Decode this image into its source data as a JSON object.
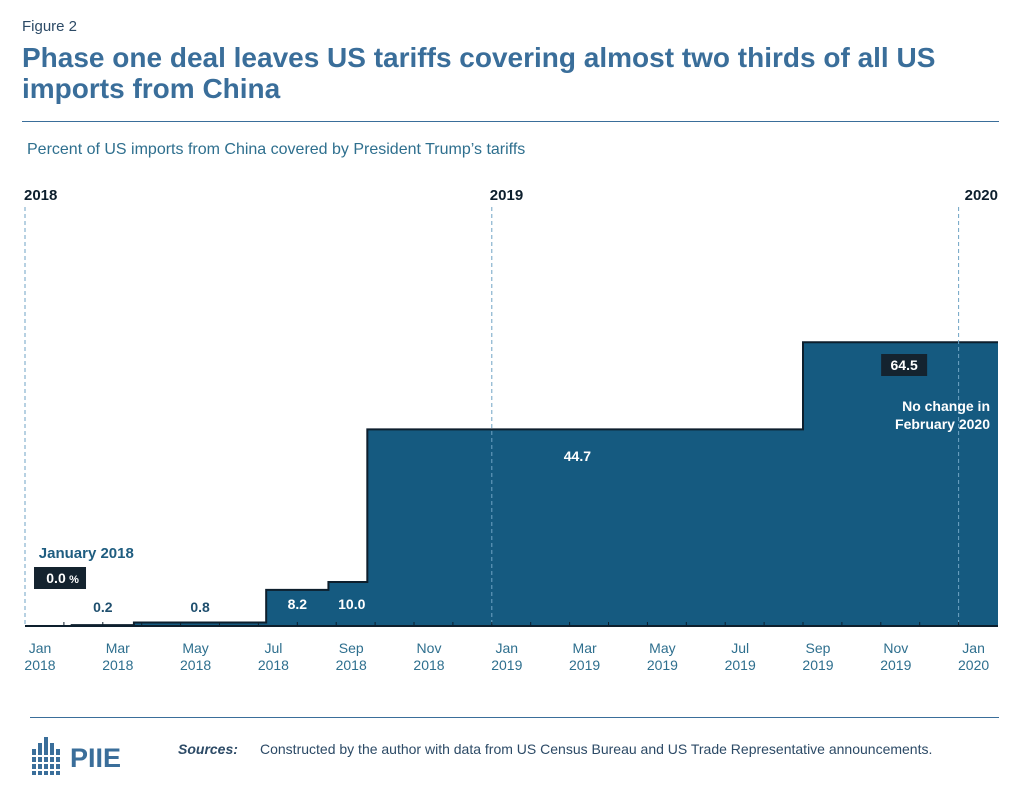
{
  "figure_label": "Figure 2",
  "title": "Phase one deal leaves US tariffs covering almost two thirds of all US imports from China",
  "chart_data": {
    "type": "area",
    "step": true,
    "title": "Percent of US imports from China covered by President Trump’s tariffs",
    "xlabel": "",
    "ylabel": "",
    "ylim": [
      0,
      100
    ],
    "grid": false,
    "x_range": [
      "2018-01",
      "2020-02"
    ],
    "x_ticks": [
      {
        "month": 0,
        "line1": "Jan",
        "line2": "2018"
      },
      {
        "month": 2,
        "line1": "Mar",
        "line2": "2018"
      },
      {
        "month": 4,
        "line1": "May",
        "line2": "2018"
      },
      {
        "month": 6,
        "line1": "Jul",
        "line2": "2018"
      },
      {
        "month": 8,
        "line1": "Sep",
        "line2": "2018"
      },
      {
        "month": 10,
        "line1": "Nov",
        "line2": "2018"
      },
      {
        "month": 12,
        "line1": "Jan",
        "line2": "2019"
      },
      {
        "month": 14,
        "line1": "Mar",
        "line2": "2019"
      },
      {
        "month": 16,
        "line1": "May",
        "line2": "2019"
      },
      {
        "month": 18,
        "line1": "Jul",
        "line2": "2019"
      },
      {
        "month": 20,
        "line1": "Sep",
        "line2": "2019"
      },
      {
        "month": 22,
        "line1": "Nov",
        "line2": "2019"
      },
      {
        "month": 24,
        "line1": "Jan",
        "line2": "2020"
      }
    ],
    "year_markers": [
      {
        "month": 0,
        "label": "2018"
      },
      {
        "month": 12,
        "label": "2019"
      },
      {
        "month": 24,
        "label": "2020"
      }
    ],
    "series": [
      {
        "name": "Percent of US imports from China covered",
        "points": [
          {
            "month": 0,
            "value": 0.0
          },
          {
            "month": 1.2,
            "value": 0.2
          },
          {
            "month": 2.8,
            "value": 0.8
          },
          {
            "month": 6.2,
            "value": 8.2
          },
          {
            "month": 7.8,
            "value": 10.0
          },
          {
            "month": 8.8,
            "value": 44.7
          },
          {
            "month": 20,
            "value": 64.5
          },
          {
            "month": 25,
            "value": 64.5
          }
        ]
      }
    ],
    "data_labels": [
      {
        "month": 0.9,
        "value": 0.0,
        "text": "0.0",
        "suffix": "%",
        "boxed": true
      },
      {
        "month": 2.0,
        "value": 0.2,
        "text": "0.2",
        "boxed": false
      },
      {
        "month": 4.5,
        "value": 0.8,
        "text": "0.8",
        "boxed": false
      },
      {
        "month": 7.0,
        "value": 8.2,
        "text": "8.2",
        "boxed": false
      },
      {
        "month": 8.4,
        "value": 10.0,
        "text": "10.0",
        "boxed": false
      },
      {
        "month": 14.2,
        "value": 44.7,
        "text": "44.7",
        "boxed": false
      },
      {
        "month": 22.6,
        "value": 64.5,
        "text": "64.5",
        "boxed": true
      }
    ],
    "annotations": [
      {
        "text": "January 2018",
        "month": 0.2,
        "anchor": "start"
      },
      {
        "text": "No change in",
        "month": 24.9,
        "anchor": "end"
      },
      {
        "text": "February 2020",
        "month": 24.9,
        "anchor": "end"
      }
    ]
  },
  "colors": {
    "area_fill": "#155a80",
    "step_line": "#0d1f2d",
    "label_box": "#14232f",
    "title": "#3a6e9a",
    "annotation": "#1f5d80"
  },
  "sources": {
    "label": "Sources:",
    "text": "Constructed by the author with data from US Census Bureau and US Trade Representative announcements."
  },
  "logo": {
    "text": "PIIE",
    "icon": "piie-building-icon"
  }
}
